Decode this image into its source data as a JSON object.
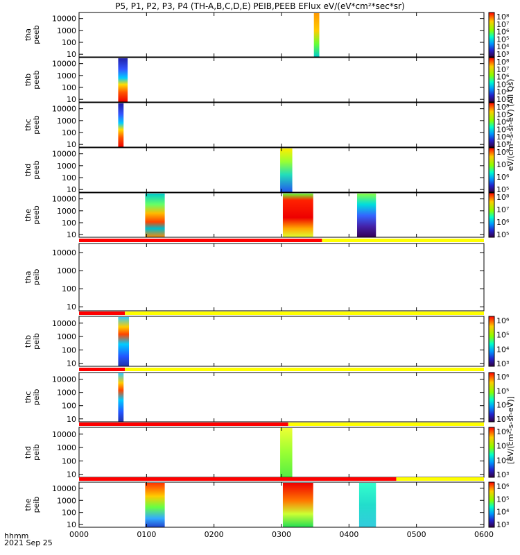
{
  "title": "P5, P1, P2, P3, P4 (TH-A,B,C,D,E) PEIB,PEEB EFlux eV/(eV*cm²*sec*sr)",
  "footer": {
    "hhmm": "hhmm",
    "date": "2021 Sep 25"
  },
  "colors": {
    "flag_bad": "#ff0000",
    "flag_good": "#ffff00",
    "background": "#ffffff"
  },
  "chart_data": {
    "type": "heatmap",
    "x_ticks": [
      "0000",
      "0100",
      "0200",
      "0300",
      "0400",
      "0500",
      "0600"
    ],
    "x_range_hours": [
      0,
      6
    ],
    "y_scale": "log",
    "y_ticks": [
      "10",
      "100",
      "1000",
      "10000"
    ],
    "y_range_eV": [
      6,
      32000
    ],
    "panels": [
      {
        "probe": "tha",
        "species": "peeb",
        "ylabel": [
          "tha",
          "peeb"
        ],
        "blocks": [
          {
            "start": 3.48,
            "end": 3.56,
            "profile": "orange-top-cyan-bottom"
          }
        ],
        "colorbar": {
          "ticks": [
            "10⁸",
            "10⁷",
            "10⁶",
            "10⁵",
            "10⁴",
            "10³"
          ]
        }
      },
      {
        "probe": "thb",
        "species": "peeb",
        "ylabel": [
          "thb",
          "peeb"
        ],
        "blocks": [
          {
            "start": 0.58,
            "end": 0.72,
            "profile": "blue-top-red-bottom"
          }
        ],
        "colorbar": {
          "ticks": [
            "10⁸",
            "10⁷",
            "10⁶",
            "10⁵",
            "10⁴",
            "10³"
          ]
        }
      },
      {
        "probe": "thc",
        "species": "peeb",
        "ylabel": [
          "thc",
          "peeb"
        ],
        "blocks": [
          {
            "start": 0.58,
            "end": 0.66,
            "profile": "blue-top-red-bottom"
          }
        ],
        "colorbar": {
          "ticks": [
            "10⁸",
            "10⁷",
            "10⁶",
            "10⁵",
            "10⁴",
            "10³"
          ]
        }
      },
      {
        "probe": "thd",
        "species": "peeb",
        "ylabel": [
          "thd",
          "peeb"
        ],
        "blocks": [
          {
            "start": 2.98,
            "end": 3.16,
            "profile": "yellow-top-blue-bottom"
          }
        ],
        "colorbar": {
          "ticks": [
            "10⁸",
            "10⁷",
            "10⁶",
            "10⁵"
          ]
        }
      },
      {
        "probe": "the",
        "species": "peeb",
        "ylabel": [
          "the",
          "peeb"
        ],
        "blocks": [
          {
            "start": 0.98,
            "end": 1.27,
            "profile": "cyan-green-red-mid"
          },
          {
            "start": 3.02,
            "end": 3.47,
            "profile": "red-mid-yellow"
          },
          {
            "start": 4.12,
            "end": 4.4,
            "profile": "green-top-purple-bottom"
          }
        ],
        "colorbar": {
          "ticks": [
            "10⁸",
            "10⁷",
            "10⁶",
            "10⁵"
          ]
        }
      },
      {
        "probe": "tha",
        "species": "peib",
        "ylabel": [
          "tha",
          "peib"
        ],
        "flag": {
          "red_until": 3.6
        },
        "blocks": [],
        "colorbar": null
      },
      {
        "probe": "thb",
        "species": "peib",
        "ylabel": [
          "thb",
          "peib"
        ],
        "flag": {
          "red_until": 0.68
        },
        "blocks": [
          {
            "start": 0.58,
            "end": 0.74,
            "profile": "blue-bottom-red-mid"
          }
        ],
        "colorbar": {
          "ticks": [
            "10⁶",
            "10⁵",
            "10⁴",
            "10³"
          ]
        }
      },
      {
        "probe": "thc",
        "species": "peib",
        "ylabel": [
          "thc",
          "peib"
        ],
        "flag": {
          "red_until": 0.68
        },
        "blocks": [
          {
            "start": 0.58,
            "end": 0.66,
            "profile": "blue-bottom-red-mid"
          }
        ],
        "colorbar": {
          "ticks": [
            "10⁶",
            "10⁵",
            "10⁴",
            "10³"
          ]
        }
      },
      {
        "probe": "thd",
        "species": "peib",
        "ylabel": [
          "thd",
          "peib"
        ],
        "flag": {
          "red_until": 3.1
        },
        "blocks": [
          {
            "start": 2.98,
            "end": 3.16,
            "profile": "yellow-green"
          }
        ],
        "colorbar": {
          "ticks": [
            "10⁶",
            "10⁵",
            "10⁴",
            "10³"
          ]
        }
      },
      {
        "probe": "the",
        "species": "peib",
        "ylabel": [
          "the",
          "peib"
        ],
        "flag": {
          "red_until": 4.7
        },
        "blocks": [
          {
            "start": 0.98,
            "end": 1.27,
            "profile": "red-top-blue-bottom"
          },
          {
            "start": 3.02,
            "end": 3.47,
            "profile": "red-top-green-bottom"
          },
          {
            "start": 4.15,
            "end": 4.4,
            "profile": "cyan"
          }
        ],
        "colorbar": {
          "ticks": [
            "10⁶",
            "10⁵",
            "10⁴",
            "10³"
          ]
        }
      }
    ],
    "colorbar_labels": {
      "electron": "eV/(cm²-s-sr-eV) (All Qs)",
      "ion": "[eV/(cm²-s-sr-eV)]"
    }
  }
}
